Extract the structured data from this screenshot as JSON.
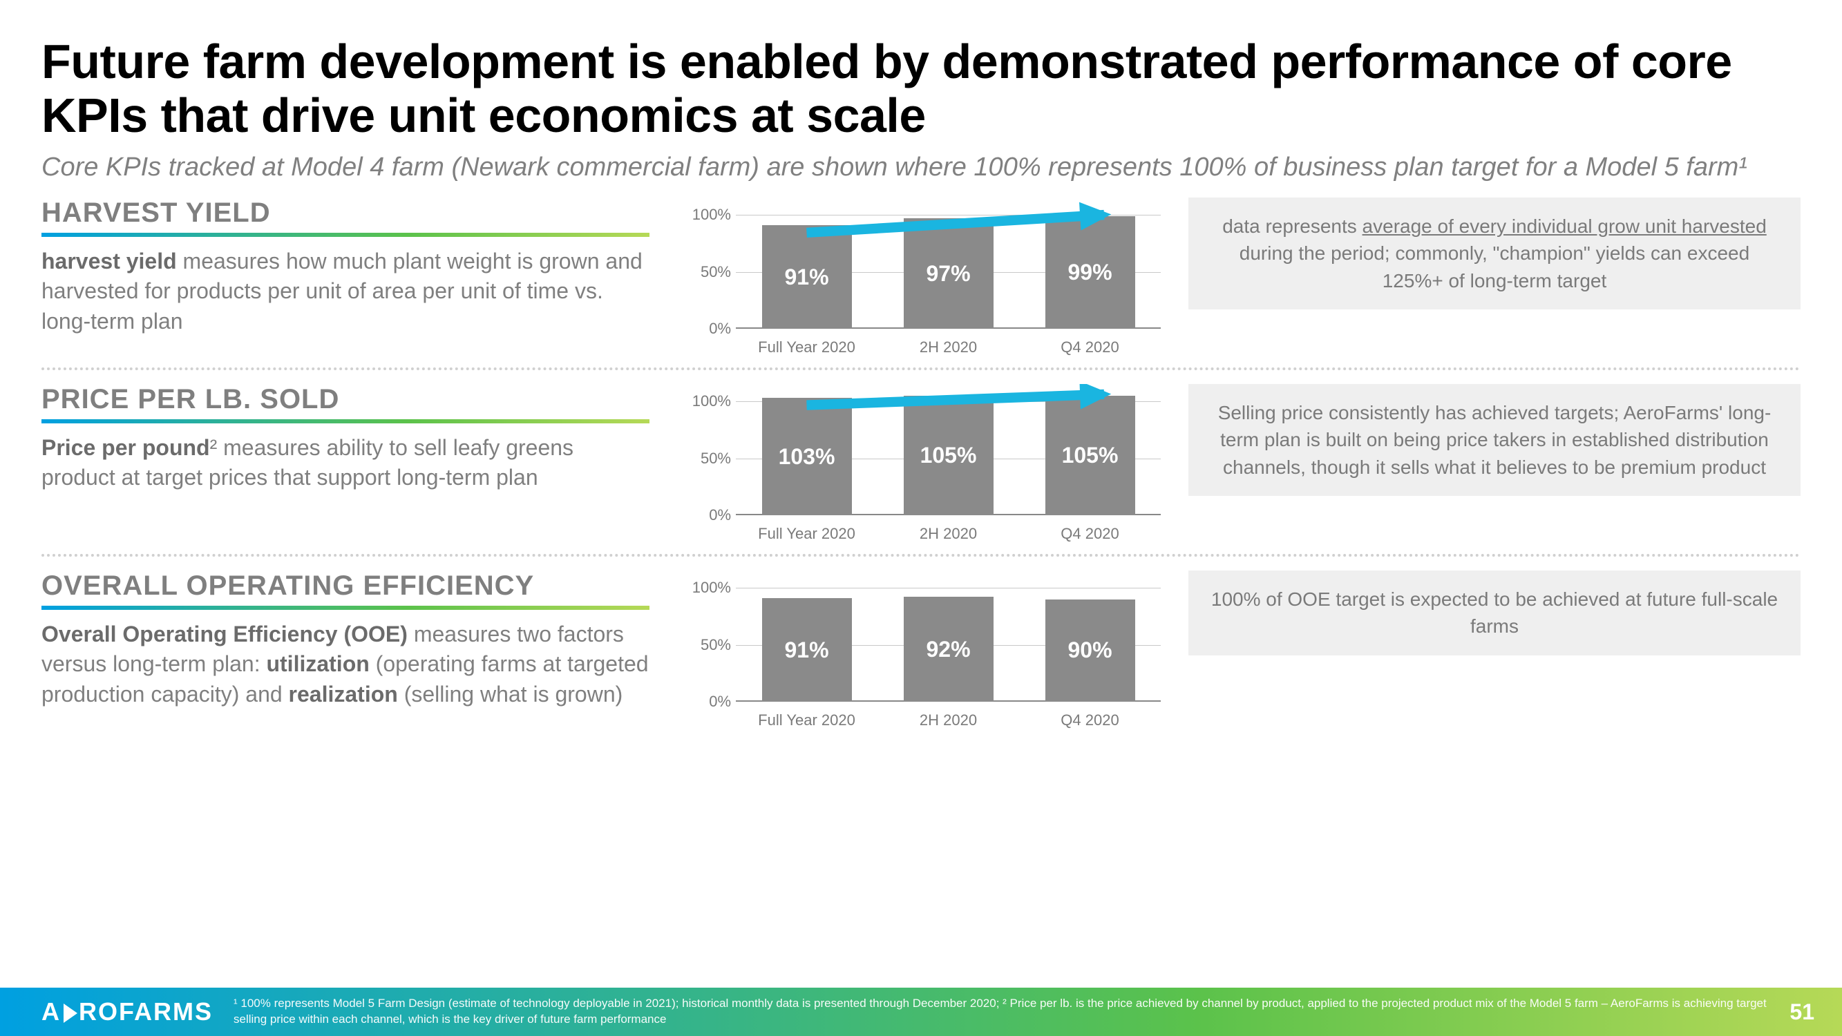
{
  "title": "Future farm development is enabled by demonstrated performance of core KPIs that drive unit economics at scale",
  "subtitle": "Core KPIs tracked at Model 4 farm (Newark commercial farm) are shown where 100% represents 100% of business plan target for a Model 5 farm¹",
  "chart_common": {
    "yticks": [
      "0%",
      "50%",
      "100%"
    ],
    "ytick_values": [
      0,
      50,
      100
    ],
    "ymax": 115,
    "categories": [
      "Full Year 2020",
      "2H 2020",
      "Q4 2020"
    ],
    "bar_color": "#8a8a8a",
    "bar_label_color": "#ffffff",
    "grid_color": "#c9c9c9",
    "arrow_color": "#1ab5e0",
    "background_color": "#ffffff"
  },
  "kpis": [
    {
      "heading": "HARVEST YIELD",
      "desc_html": "<b>harvest yield</b> measures how much plant weight is grown and harvested for products per unit of area per unit of time vs. long-term plan",
      "values": [
        91,
        97,
        99
      ],
      "labels": [
        "91%",
        "97%",
        "99%"
      ],
      "show_arrow": true,
      "note_html": "data represents <u>average of every individual grow unit harvested</u> during the period; commonly, \"champion\" yields can exceed 125%+ of long-term target"
    },
    {
      "heading": "PRICE PER LB. SOLD",
      "desc_html": "<b>Price per pound</b>² measures ability to sell leafy greens product at target prices that support long-term plan",
      "values": [
        103,
        105,
        105
      ],
      "labels": [
        "103%",
        "105%",
        "105%"
      ],
      "show_arrow": true,
      "note_html": "Selling price consistently has achieved targets; AeroFarms' long-term plan is built on being price takers in established distribution channels, though it sells what it believes to be premium product"
    },
    {
      "heading": "OVERALL OPERATING EFFICIENCY",
      "desc_html": "<b>Overall Operating Efficiency (OOE)</b> measures two factors versus long-term plan: <b>utilization</b> (operating farms at targeted production capacity) and <b>realization</b> (selling what is grown)",
      "values": [
        91,
        92,
        90
      ],
      "labels": [
        "91%",
        "92%",
        "90%"
      ],
      "show_arrow": false,
      "note_html": "100% of OOE target is expected to be achieved at future full-scale farms"
    }
  ],
  "footer": {
    "logo_left": "A",
    "logo_right": "ROFARMS",
    "footnote": "¹ 100% represents Model 5 Farm Design (estimate of technology deployable in 2021); historical monthly data is presented through December 2020; ² Price per lb. is the price achieved by channel by product, applied to the projected product mix of the Model 5 farm – AeroFarms is achieving target selling price within each channel, which is the key driver of future farm performance",
    "page": "51"
  }
}
